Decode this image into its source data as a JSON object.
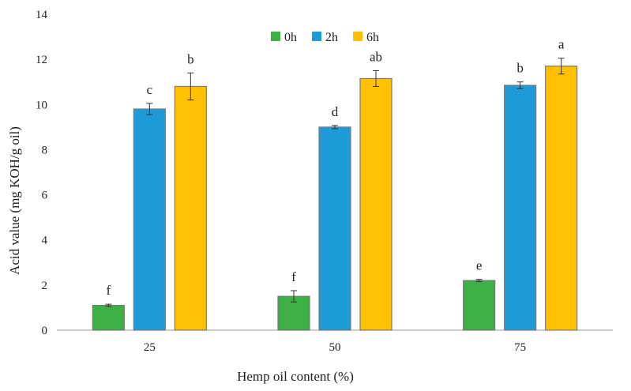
{
  "chart_data": {
    "type": "bar",
    "title": "",
    "xlabel": "Hemp oil content (%)",
    "ylabel": "Acid value (mg KOH/g oil)",
    "categories": [
      "25",
      "50",
      "75"
    ],
    "ylim": [
      0,
      14
    ],
    "yticks": [
      "0",
      "2",
      "4",
      "6",
      "8",
      "10",
      "12",
      "14"
    ],
    "grid": false,
    "legend_position": "top-center",
    "series": [
      {
        "name": "0h",
        "color": "#3cb043",
        "values": [
          1.1,
          1.5,
          2.2
        ],
        "errors": [
          0.05,
          0.25,
          0.05
        ],
        "labels": [
          "f",
          "f",
          "e"
        ]
      },
      {
        "name": "2h",
        "color": "#1e9ad6",
        "values": [
          9.8,
          9.0,
          10.85
        ],
        "errors": [
          0.25,
          0.07,
          0.15
        ],
        "labels": [
          "c",
          "d",
          "b"
        ]
      },
      {
        "name": "6h",
        "color": "#ffc000",
        "values": [
          10.8,
          11.15,
          11.7
        ],
        "errors": [
          0.6,
          0.35,
          0.35
        ],
        "labels": [
          "b",
          "ab",
          "a"
        ]
      }
    ]
  }
}
